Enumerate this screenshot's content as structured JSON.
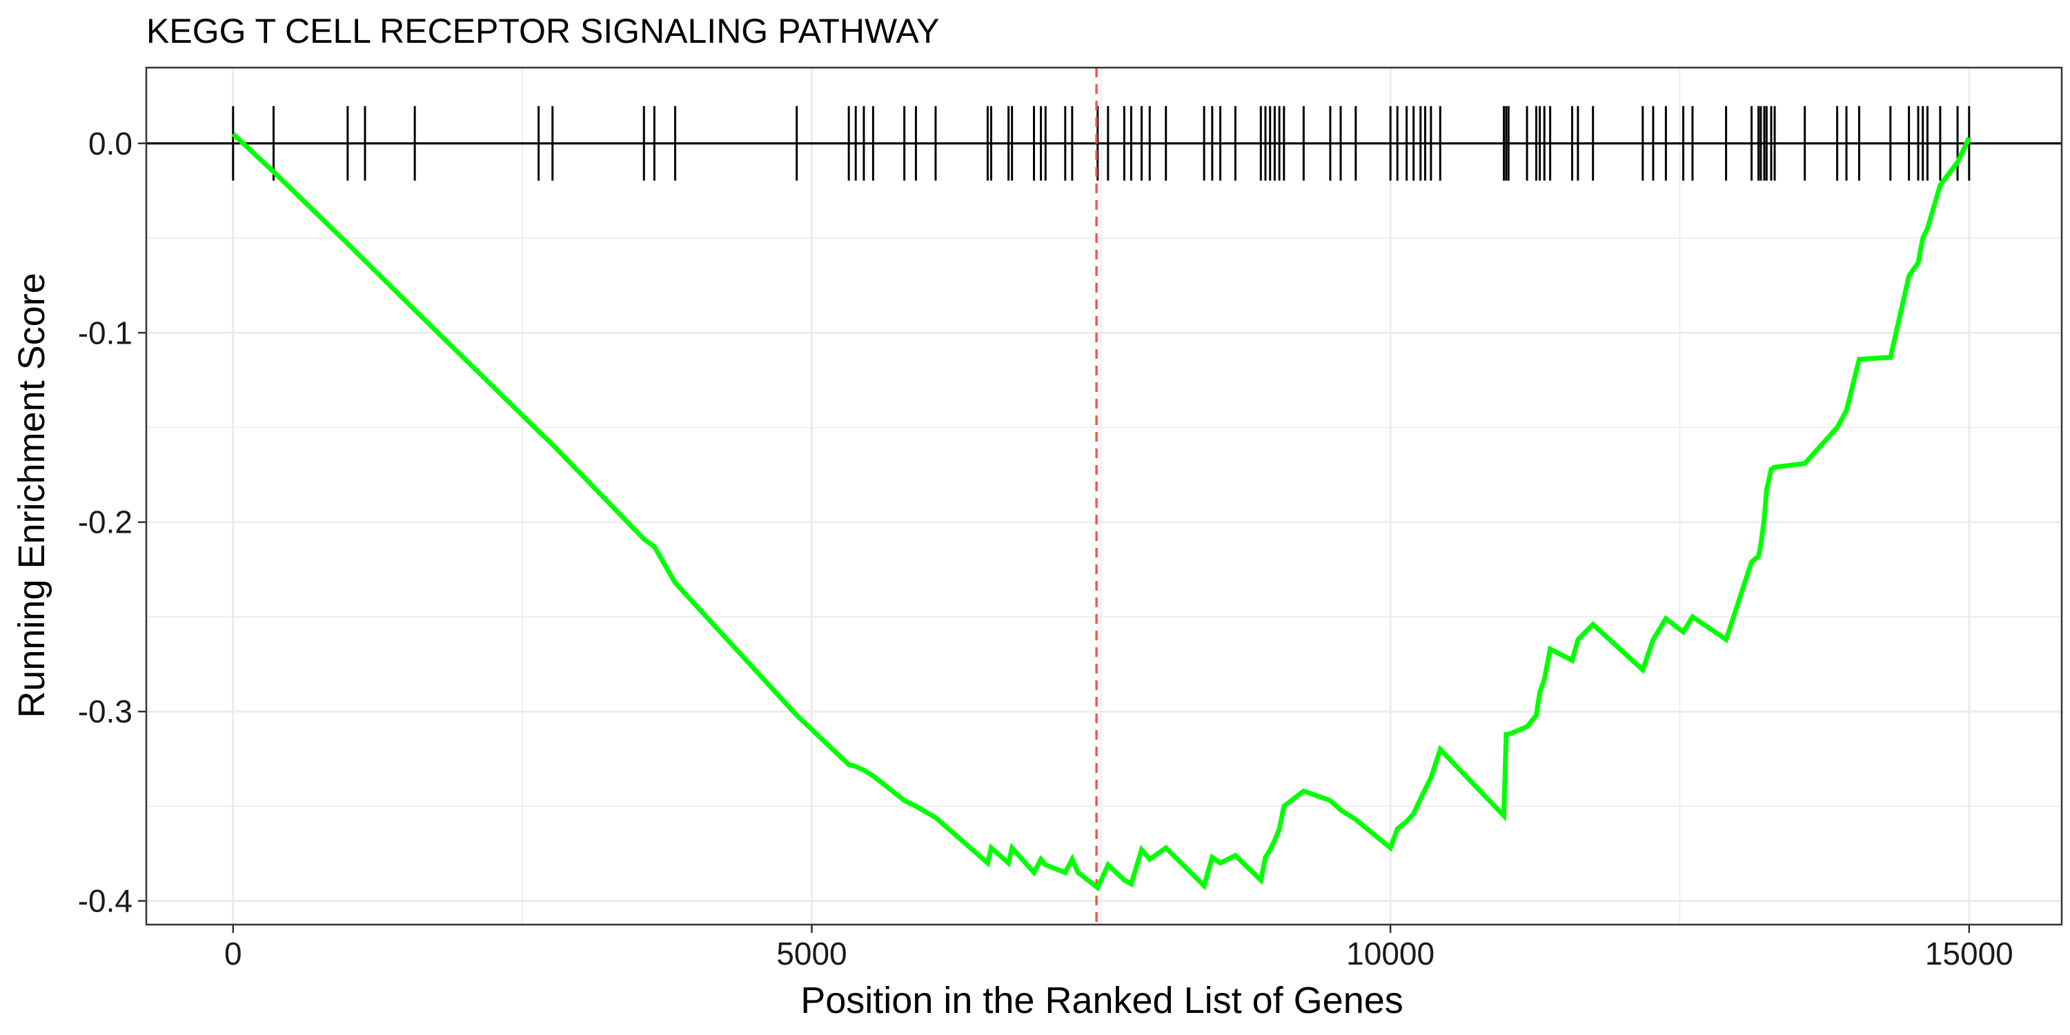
{
  "chart_data": {
    "type": "line",
    "title": "KEGG T CELL RECEPTOR SIGNALING PATHWAY",
    "xlabel": "Position in the Ranked List of Genes",
    "ylabel": "Running Enrichment Score",
    "xlim": [
      -750,
      15800
    ],
    "ylim": [
      -0.4125,
      0.04
    ],
    "x_ticks": [
      {
        "value": 0,
        "label": "0"
      },
      {
        "value": 5000,
        "label": "5000"
      },
      {
        "value": 10000,
        "label": "10000"
      },
      {
        "value": 15000,
        "label": "15000"
      }
    ],
    "y_ticks": [
      {
        "value": 0.0,
        "label": "0.0"
      },
      {
        "value": -0.1,
        "label": "-0.1"
      },
      {
        "value": -0.2,
        "label": "-0.2"
      },
      {
        "value": -0.3,
        "label": "-0.3"
      },
      {
        "value": -0.4,
        "label": "-0.4"
      }
    ],
    "grid": true,
    "colors": {
      "curve": "#00ff00",
      "zero_line": "#000000",
      "hits": "#000000",
      "max_deviation_line": "#ff4d4d",
      "grid": "#ebebeb",
      "panel_border": "#333333"
    },
    "max_deviation_position": 7460,
    "zero_line": 0.0,
    "hit_positions": [
      0,
      350,
      990,
      1140,
      1570,
      2640,
      2760,
      3550,
      3640,
      3820,
      4870,
      5320,
      5380,
      5450,
      5530,
      5800,
      5900,
      6070,
      6520,
      6550,
      6700,
      6730,
      6920,
      6980,
      7020,
      7190,
      7250,
      7470,
      7560,
      7700,
      7760,
      7850,
      7920,
      8060,
      8390,
      8460,
      8530,
      8660,
      8880,
      8920,
      8960,
      9000,
      9040,
      9080,
      9250,
      9480,
      9570,
      9700,
      10000,
      10060,
      10140,
      10200,
      10260,
      10300,
      10350,
      10430,
      10980,
      11000,
      11020,
      11180,
      11260,
      11290,
      11330,
      11380,
      11570,
      11620,
      11750,
      12180,
      12270,
      12380,
      12530,
      12610,
      12900,
      13120,
      13180,
      13200,
      13230,
      13250,
      13290,
      13320,
      13580,
      13860,
      13940,
      14050,
      14320,
      14480,
      14560,
      14600,
      14640,
      14750,
      14900,
      15000
    ],
    "series": [
      {
        "values": [
          [
            0,
            0.005
          ],
          [
            350,
            -0.015
          ],
          [
            990,
            -0.053
          ],
          [
            1140,
            -0.062
          ],
          [
            1570,
            -0.088
          ],
          [
            2640,
            -0.152
          ],
          [
            2760,
            -0.159
          ],
          [
            3550,
            -0.209
          ],
          [
            3640,
            -0.213
          ],
          [
            3820,
            -0.232
          ],
          [
            4870,
            -0.302
          ],
          [
            5320,
            -0.328
          ],
          [
            5380,
            -0.329
          ],
          [
            5450,
            -0.331
          ],
          [
            5530,
            -0.334
          ],
          [
            5800,
            -0.347
          ],
          [
            5900,
            -0.35
          ],
          [
            6070,
            -0.356
          ],
          [
            6520,
            -0.38
          ],
          [
            6550,
            -0.372
          ],
          [
            6700,
            -0.38
          ],
          [
            6730,
            -0.372
          ],
          [
            6920,
            -0.385
          ],
          [
            6980,
            -0.378
          ],
          [
            7020,
            -0.381
          ],
          [
            7190,
            -0.385
          ],
          [
            7250,
            -0.378
          ],
          [
            7300,
            -0.385
          ],
          [
            7470,
            -0.393
          ],
          [
            7560,
            -0.381
          ],
          [
            7700,
            -0.389
          ],
          [
            7760,
            -0.391
          ],
          [
            7850,
            -0.373
          ],
          [
            7920,
            -0.378
          ],
          [
            8060,
            -0.372
          ],
          [
            8390,
            -0.392
          ],
          [
            8460,
            -0.377
          ],
          [
            8530,
            -0.38
          ],
          [
            8660,
            -0.376
          ],
          [
            8880,
            -0.389
          ],
          [
            8920,
            -0.377
          ],
          [
            8960,
            -0.373
          ],
          [
            9000,
            -0.368
          ],
          [
            9040,
            -0.362
          ],
          [
            9080,
            -0.35
          ],
          [
            9250,
            -0.342
          ],
          [
            9480,
            -0.347
          ],
          [
            9570,
            -0.352
          ],
          [
            9700,
            -0.357
          ],
          [
            10000,
            -0.372
          ],
          [
            10060,
            -0.362
          ],
          [
            10140,
            -0.358
          ],
          [
            10200,
            -0.354
          ],
          [
            10260,
            -0.346
          ],
          [
            10300,
            -0.341
          ],
          [
            10350,
            -0.335
          ],
          [
            10430,
            -0.32
          ],
          [
            10980,
            -0.355
          ],
          [
            11000,
            -0.312
          ],
          [
            11020,
            -0.312
          ],
          [
            11180,
            -0.308
          ],
          [
            11260,
            -0.302
          ],
          [
            11290,
            -0.29
          ],
          [
            11330,
            -0.283
          ],
          [
            11380,
            -0.267
          ],
          [
            11570,
            -0.273
          ],
          [
            11620,
            -0.262
          ],
          [
            11750,
            -0.254
          ],
          [
            12180,
            -0.278
          ],
          [
            12270,
            -0.262
          ],
          [
            12380,
            -0.251
          ],
          [
            12530,
            -0.258
          ],
          [
            12610,
            -0.25
          ],
          [
            12900,
            -0.262
          ],
          [
            13120,
            -0.221
          ],
          [
            13180,
            -0.218
          ],
          [
            13200,
            -0.212
          ],
          [
            13230,
            -0.198
          ],
          [
            13250,
            -0.183
          ],
          [
            13290,
            -0.172
          ],
          [
            13320,
            -0.171
          ],
          [
            13580,
            -0.169
          ],
          [
            13860,
            -0.15
          ],
          [
            13940,
            -0.141
          ],
          [
            14050,
            -0.114
          ],
          [
            14320,
            -0.113
          ],
          [
            14480,
            -0.07
          ],
          [
            14560,
            -0.063
          ],
          [
            14600,
            -0.05
          ],
          [
            14640,
            -0.045
          ],
          [
            14750,
            -0.022
          ],
          [
            14900,
            -0.01
          ],
          [
            15000,
            0.003
          ]
        ]
      }
    ]
  }
}
